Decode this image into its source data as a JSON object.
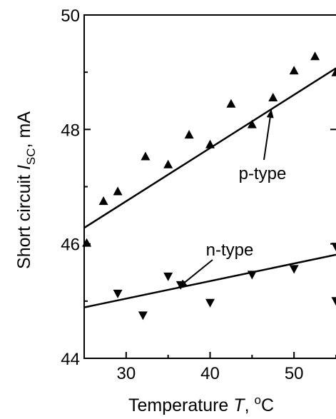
{
  "chart_data": {
    "type": "scatter",
    "xlabel": {
      "main": "Temperature ",
      "var": "T",
      "sep": ", ",
      "sup": "o",
      "unit": "C"
    },
    "ylabel": {
      "main": "Short circuit ",
      "var": "I",
      "sub": "SC",
      "unit": ", mA"
    },
    "xlim": [
      25,
      55
    ],
    "ylim": [
      44,
      50
    ],
    "x_ticks": [
      30,
      40,
      50
    ],
    "y_ticks": [
      44,
      46,
      48,
      50
    ],
    "grid": false,
    "series": [
      {
        "name": "p-type",
        "marker": "triangle-up",
        "points": [
          [
            25.3,
            46.02
          ],
          [
            27.3,
            46.75
          ],
          [
            29.0,
            46.92
          ],
          [
            32.3,
            47.53
          ],
          [
            35.0,
            47.39
          ],
          [
            37.5,
            47.91
          ],
          [
            40.0,
            47.74
          ],
          [
            42.5,
            48.45
          ],
          [
            45.0,
            48.09
          ],
          [
            47.5,
            48.56
          ],
          [
            50.0,
            49.03
          ],
          [
            52.5,
            49.28
          ],
          [
            55.0,
            49.0
          ]
        ],
        "fit": {
          "x": [
            25,
            55
          ],
          "y": [
            46.28,
            49.07
          ]
        }
      },
      {
        "name": "n-type",
        "marker": "triangle-down",
        "points": [
          [
            29.0,
            45.13
          ],
          [
            32.0,
            44.75
          ],
          [
            35.0,
            45.43
          ],
          [
            36.5,
            45.28
          ],
          [
            40.0,
            44.97
          ],
          [
            45.0,
            45.46
          ],
          [
            50.0,
            45.56
          ],
          [
            55.0,
            45.95
          ],
          [
            55.0,
            45.0
          ]
        ],
        "fit": {
          "x": [
            25,
            55
          ],
          "y": [
            44.89,
            45.81
          ]
        }
      }
    ],
    "annotations": [
      {
        "text": "p-type",
        "series": "p-type"
      },
      {
        "text": "n-type",
        "series": "n-type"
      }
    ]
  }
}
